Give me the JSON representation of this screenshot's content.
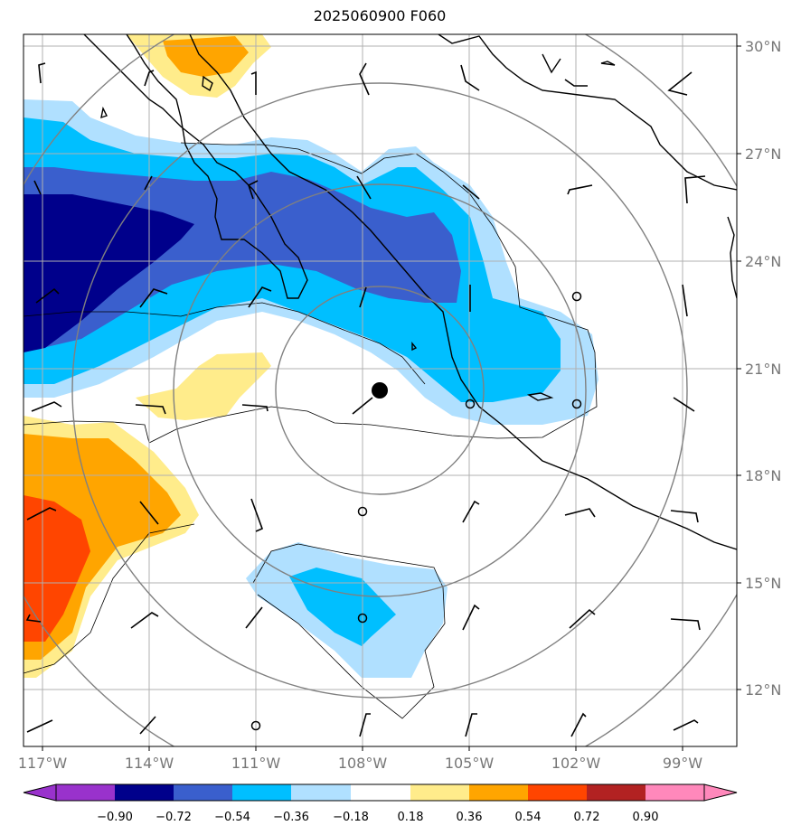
{
  "title": "2025060900 F060",
  "map": {
    "lon_ticks": [
      "117°W",
      "114°W",
      "111°W",
      "108°W",
      "105°W",
      "102°W",
      "99°W"
    ],
    "lat_ticks": [
      "30°N",
      "27°N",
      "24°N",
      "21°N",
      "18°N",
      "15°N",
      "12°N"
    ],
    "storm_center": {
      "lon": -107.6,
      "lat": 20.4
    },
    "range_rings": "concentric rings around storm center",
    "wind_barbs": true,
    "colors": {
      "land_outline": "#000000",
      "grid": "#b0b0b0",
      "rings": "#808080"
    }
  },
  "colorbar": {
    "labels": [
      "−0.90",
      "−0.72",
      "−0.54",
      "−0.36",
      "−0.18",
      "0.18",
      "0.36",
      "0.54",
      "0.72",
      "0.90"
    ],
    "colors": [
      "#9932cc",
      "#00008b",
      "#3a5fcd",
      "#00bfff",
      "#b0e0ff",
      "#ffffff",
      "#ffec8b",
      "#ffa500",
      "#ff4500",
      "#b22222",
      "#ff88bb"
    ],
    "extend": "both"
  }
}
